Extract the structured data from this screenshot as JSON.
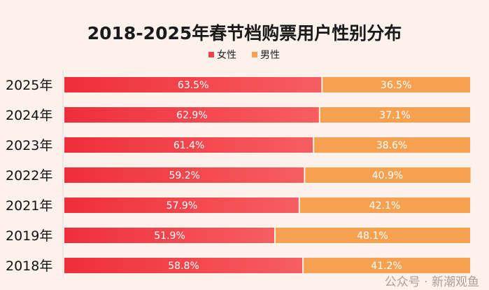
{
  "chart_data": {
    "type": "bar",
    "stacked": true,
    "orientation": "horizontal",
    "title": "2018-2025年春节档购票用户性别分布",
    "categories": [
      "2025年",
      "2024年",
      "2023年",
      "2022年",
      "2021年",
      "2019年",
      "2018年"
    ],
    "series": [
      {
        "name": "女性",
        "values": [
          63.5,
          62.9,
          61.4,
          59.2,
          57.9,
          51.9,
          58.8
        ],
        "labels": [
          "63.5%",
          "62.9%",
          "61.4%",
          "59.2%",
          "57.9%",
          "51.9%",
          "58.8%"
        ],
        "color": "#f0424a"
      },
      {
        "name": "男性",
        "values": [
          36.5,
          37.1,
          38.6,
          40.9,
          42.1,
          48.1,
          41.2
        ],
        "labels": [
          "36.5%",
          "37.1%",
          "38.6%",
          "40.9%",
          "42.1%",
          "48.1%",
          "41.2%"
        ],
        "color": "#f5a150"
      }
    ],
    "xlim": [
      0,
      100
    ],
    "legend": "top",
    "grid": false
  },
  "watermark": "公众号 · 新潮观鱼"
}
